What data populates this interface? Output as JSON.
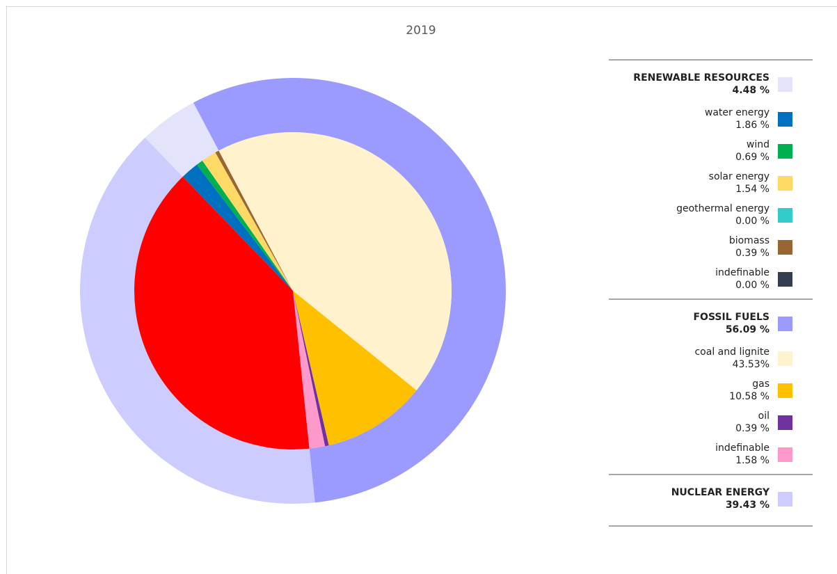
{
  "chart_data": {
    "type": "nested_pie",
    "title": "2019",
    "groups": [
      {
        "name": "RENEWABLE RESOURCES",
        "value": 4.48,
        "value_label": "4.48 %",
        "color": "#e3e3fb",
        "children": [
          {
            "name": "water energy",
            "value": 1.86,
            "value_label": "1.86 %",
            "color": "#0070c0"
          },
          {
            "name": "wind",
            "value": 0.69,
            "value_label": "0.69 %",
            "color": "#00b050"
          },
          {
            "name": "solar energy",
            "value": 1.54,
            "value_label": "1.54 %",
            "color": "#ffd966"
          },
          {
            "name": "geothermal energy",
            "value": 0.0,
            "value_label": "0.00 %",
            "color": "#33cccc"
          },
          {
            "name": "biomass",
            "value": 0.39,
            "value_label": "0.39 %",
            "color": "#996633"
          },
          {
            "name": "indefinable",
            "value": 0.0,
            "value_label": "0.00 %",
            "color": "#333f50"
          }
        ]
      },
      {
        "name": "FOSSIL FUELS",
        "value": 56.09,
        "value_label": "56.09 %",
        "color": "#9b9bff",
        "children": [
          {
            "name": "coal and lignite",
            "value": 43.53,
            "value_label": "43.53%",
            "color": "#fff2cc"
          },
          {
            "name": "gas",
            "value": 10.58,
            "value_label": "10.58 %",
            "color": "#ffc000"
          },
          {
            "name": "oil",
            "value": 0.39,
            "value_label": "0.39 %",
            "color": "#7030a0"
          },
          {
            "name": "indefinable",
            "value": 1.58,
            "value_label": "1.58 %",
            "color": "#ff99cc"
          }
        ]
      },
      {
        "name": "NUCLEAR ENERGY",
        "value": 39.43,
        "value_label": "39.43 %",
        "color": "#ccccff",
        "inner_color": "#ff0000",
        "children": []
      }
    ]
  }
}
